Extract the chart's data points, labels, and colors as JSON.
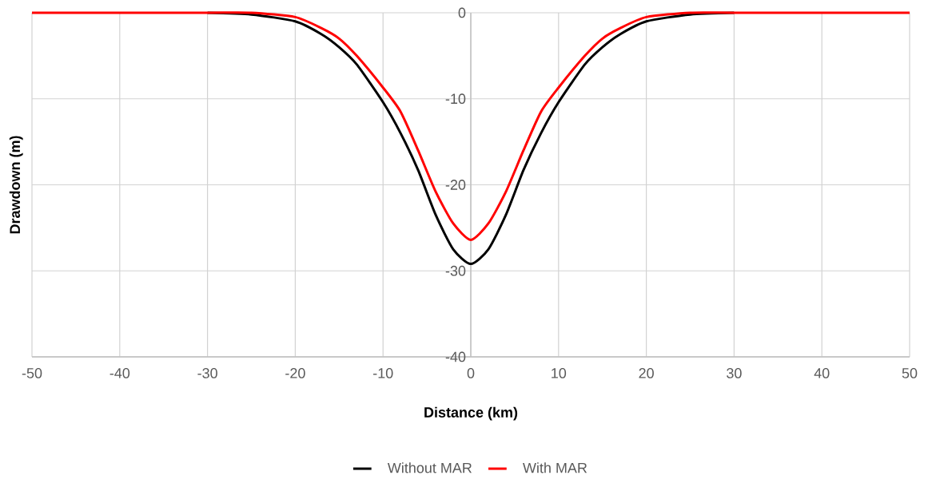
{
  "chart_data": {
    "type": "line",
    "xlabel": "Distance (km)",
    "ylabel": "Drawdown (m)",
    "x": [
      -50,
      -40,
      -30,
      -25,
      -20,
      -17,
      -15,
      -13,
      -10,
      -8,
      -6,
      -4,
      -2,
      0,
      2,
      4,
      6,
      8,
      10,
      13,
      15,
      17,
      20,
      25,
      30,
      40,
      50
    ],
    "series": [
      {
        "name": "Without MAR",
        "color": "#000000",
        "values": [
          null,
          null,
          0,
          -0.2,
          -1,
          -2.5,
          -4,
          -6,
          -10.4,
          -14,
          -18.3,
          -23.5,
          -27.5,
          -29.2,
          -27.5,
          -23.5,
          -18.3,
          -14,
          -10.4,
          -6,
          -4,
          -2.5,
          -1,
          -0.2,
          0,
          null,
          null
        ]
      },
      {
        "name": "With MAR",
        "color": "#ff0000",
        "values": [
          0,
          0,
          0,
          0,
          -0.5,
          -1.8,
          -3,
          -5,
          -8.7,
          -11.5,
          -16,
          -20.8,
          -24.5,
          -26.4,
          -24.5,
          -20.8,
          -16,
          -11.5,
          -8.7,
          -5,
          -3,
          -1.8,
          -0.5,
          0,
          0,
          0,
          0
        ]
      }
    ],
    "xlim": [
      -50,
      50
    ],
    "xticks": [
      -50,
      -40,
      -30,
      -20,
      -10,
      0,
      10,
      20,
      30,
      40,
      50
    ],
    "ylim": [
      -40,
      0
    ],
    "yticks": [
      -40,
      -30,
      -20,
      -10,
      0
    ],
    "grid": true,
    "legend": "bottom",
    "marker": "none",
    "line_style": "solid"
  }
}
